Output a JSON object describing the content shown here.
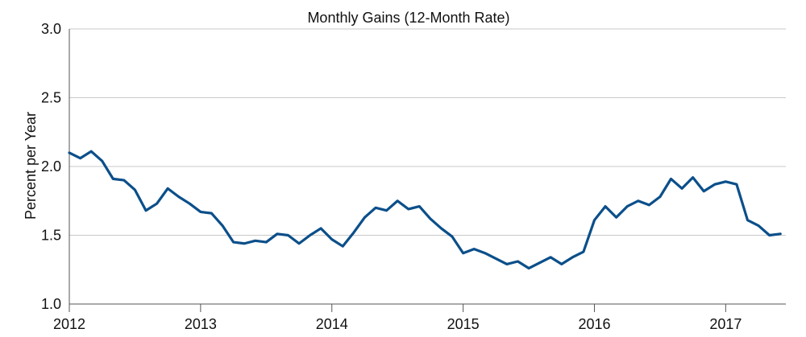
{
  "chart_data": {
    "type": "line",
    "title": "Monthly Gains (12-Month Rate)",
    "xlabel": "",
    "ylabel": "Percent per Year",
    "ylim": [
      1.0,
      3.0
    ],
    "yticks": [
      "1.0",
      "1.5",
      "2.0",
      "2.5",
      "3.0"
    ],
    "xticks": [
      "2012",
      "2013",
      "2014",
      "2015",
      "2016",
      "2017"
    ],
    "grid": true,
    "legend": "none",
    "colors": {
      "line": "#0b4f8a",
      "grid": "#c9c9c9"
    },
    "series": [
      {
        "x": [
          "2012-01",
          "2012-02",
          "2012-03",
          "2012-04",
          "2012-05",
          "2012-06",
          "2012-07",
          "2012-08",
          "2012-09",
          "2012-10",
          "2012-11",
          "2012-12",
          "2013-01",
          "2013-02",
          "2013-03",
          "2013-04",
          "2013-05",
          "2013-06",
          "2013-07",
          "2013-08",
          "2013-09",
          "2013-10",
          "2013-11",
          "2013-12",
          "2014-01",
          "2014-02",
          "2014-03",
          "2014-04",
          "2014-05",
          "2014-06",
          "2014-07",
          "2014-08",
          "2014-09",
          "2014-10",
          "2014-11",
          "2014-12",
          "2015-01",
          "2015-02",
          "2015-03",
          "2015-04",
          "2015-05",
          "2015-06",
          "2015-07",
          "2015-08",
          "2015-09",
          "2015-10",
          "2015-11",
          "2015-12",
          "2016-01",
          "2016-02",
          "2016-03",
          "2016-04",
          "2016-05",
          "2016-06",
          "2016-07",
          "2016-08",
          "2016-09",
          "2016-10",
          "2016-11",
          "2016-12",
          "2017-01",
          "2017-02",
          "2017-03",
          "2017-04",
          "2017-05",
          "2017-06"
        ],
        "values": [
          2.1,
          2.06,
          2.11,
          2.04,
          1.91,
          1.9,
          1.83,
          1.68,
          1.73,
          1.84,
          1.78,
          1.73,
          1.67,
          1.66,
          1.57,
          1.45,
          1.44,
          1.46,
          1.45,
          1.51,
          1.5,
          1.44,
          1.5,
          1.55,
          1.47,
          1.42,
          1.52,
          1.63,
          1.7,
          1.68,
          1.75,
          1.69,
          1.71,
          1.62,
          1.55,
          1.49,
          1.37,
          1.4,
          1.37,
          1.33,
          1.29,
          1.31,
          1.26,
          1.3,
          1.34,
          1.29,
          1.34,
          1.38,
          1.61,
          1.71,
          1.63,
          1.71,
          1.75,
          1.72,
          1.78,
          1.91,
          1.84,
          1.92,
          1.82,
          1.87,
          1.89,
          1.87,
          1.61,
          1.57,
          1.5,
          1.51
        ]
      }
    ]
  }
}
